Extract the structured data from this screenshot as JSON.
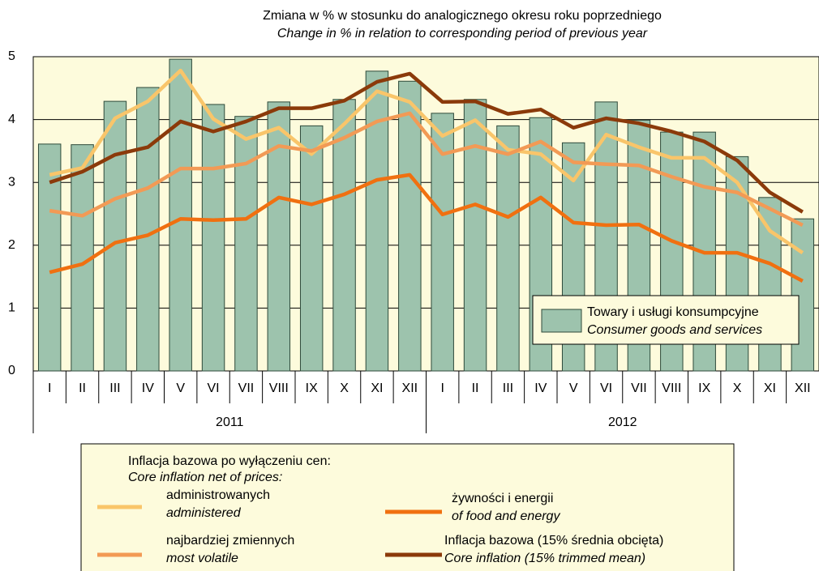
{
  "chart_data": {
    "type": "bar-line",
    "title": "Zmiana w % w stosunku do analogicznego okresu roku poprzedniego",
    "subtitle": "Change in % in relation to corresponding period of previous year",
    "categories": [
      "I",
      "II",
      "III",
      "IV",
      "V",
      "VI",
      "VII",
      "VIII",
      "IX",
      "X",
      "XI",
      "XII",
      "I",
      "II",
      "III",
      "IV",
      "V",
      "VI",
      "VII",
      "VIII",
      "IX",
      "X",
      "XI",
      "XII"
    ],
    "years": [
      "2011",
      "2012"
    ],
    "ylim": [
      0,
      5
    ],
    "yticks": [
      0,
      1,
      2,
      3,
      4,
      5
    ],
    "bar_series": {
      "name": "Towary i usługi konsumpcyjne",
      "name_en": "Consumer goods and services",
      "color": "#9dc3ad",
      "values": [
        3.61,
        3.6,
        4.29,
        4.51,
        4.96,
        4.24,
        4.05,
        4.28,
        3.9,
        4.32,
        4.77,
        4.61,
        4.1,
        4.32,
        3.9,
        4.03,
        3.63,
        4.28,
        3.99,
        3.8,
        3.8,
        3.41,
        2.76,
        2.42
      ]
    },
    "legend_title": "Inflacja bazowa po wyłączeniu cen:",
    "legend_title_en": "Core inflation net of prices:",
    "series": [
      {
        "name": "administrowanych",
        "name_en": "administered",
        "color": "#f9c56a",
        "values": [
          3.12,
          3.23,
          4.02,
          4.29,
          4.78,
          4.01,
          3.69,
          3.87,
          3.45,
          3.93,
          4.45,
          4.28,
          3.74,
          3.99,
          3.52,
          3.45,
          3.03,
          3.76,
          3.56,
          3.39,
          3.39,
          3.0,
          2.23,
          1.88
        ]
      },
      {
        "name": "żywności i energii",
        "name_en": "of food and energy",
        "color": "#f07010",
        "values": [
          1.57,
          1.7,
          2.04,
          2.16,
          2.42,
          2.4,
          2.42,
          2.76,
          2.65,
          2.81,
          3.04,
          3.12,
          2.49,
          2.65,
          2.45,
          2.76,
          2.36,
          2.32,
          2.33,
          2.07,
          1.88,
          1.88,
          1.71,
          1.43
        ]
      },
      {
        "name": "najbardziej zmiennych",
        "name_en": "most volatile",
        "color": "#f29a55",
        "values": [
          2.55,
          2.47,
          2.74,
          2.91,
          3.22,
          3.22,
          3.3,
          3.58,
          3.5,
          3.71,
          3.97,
          4.1,
          3.45,
          3.58,
          3.45,
          3.65,
          3.32,
          3.29,
          3.27,
          3.09,
          2.93,
          2.84,
          2.58,
          2.32
        ]
      },
      {
        "name": "Inflacja bazowa (15% średnia obcięta)",
        "name_en": "Core inflation (15% trimmed mean)",
        "color": "#8b3a0a",
        "values": [
          3.0,
          3.17,
          3.44,
          3.56,
          3.97,
          3.81,
          3.97,
          4.18,
          4.18,
          4.3,
          4.6,
          4.73,
          4.28,
          4.29,
          4.09,
          4.16,
          3.87,
          4.02,
          3.94,
          3.81,
          3.65,
          3.35,
          2.84,
          2.53
        ]
      }
    ]
  }
}
